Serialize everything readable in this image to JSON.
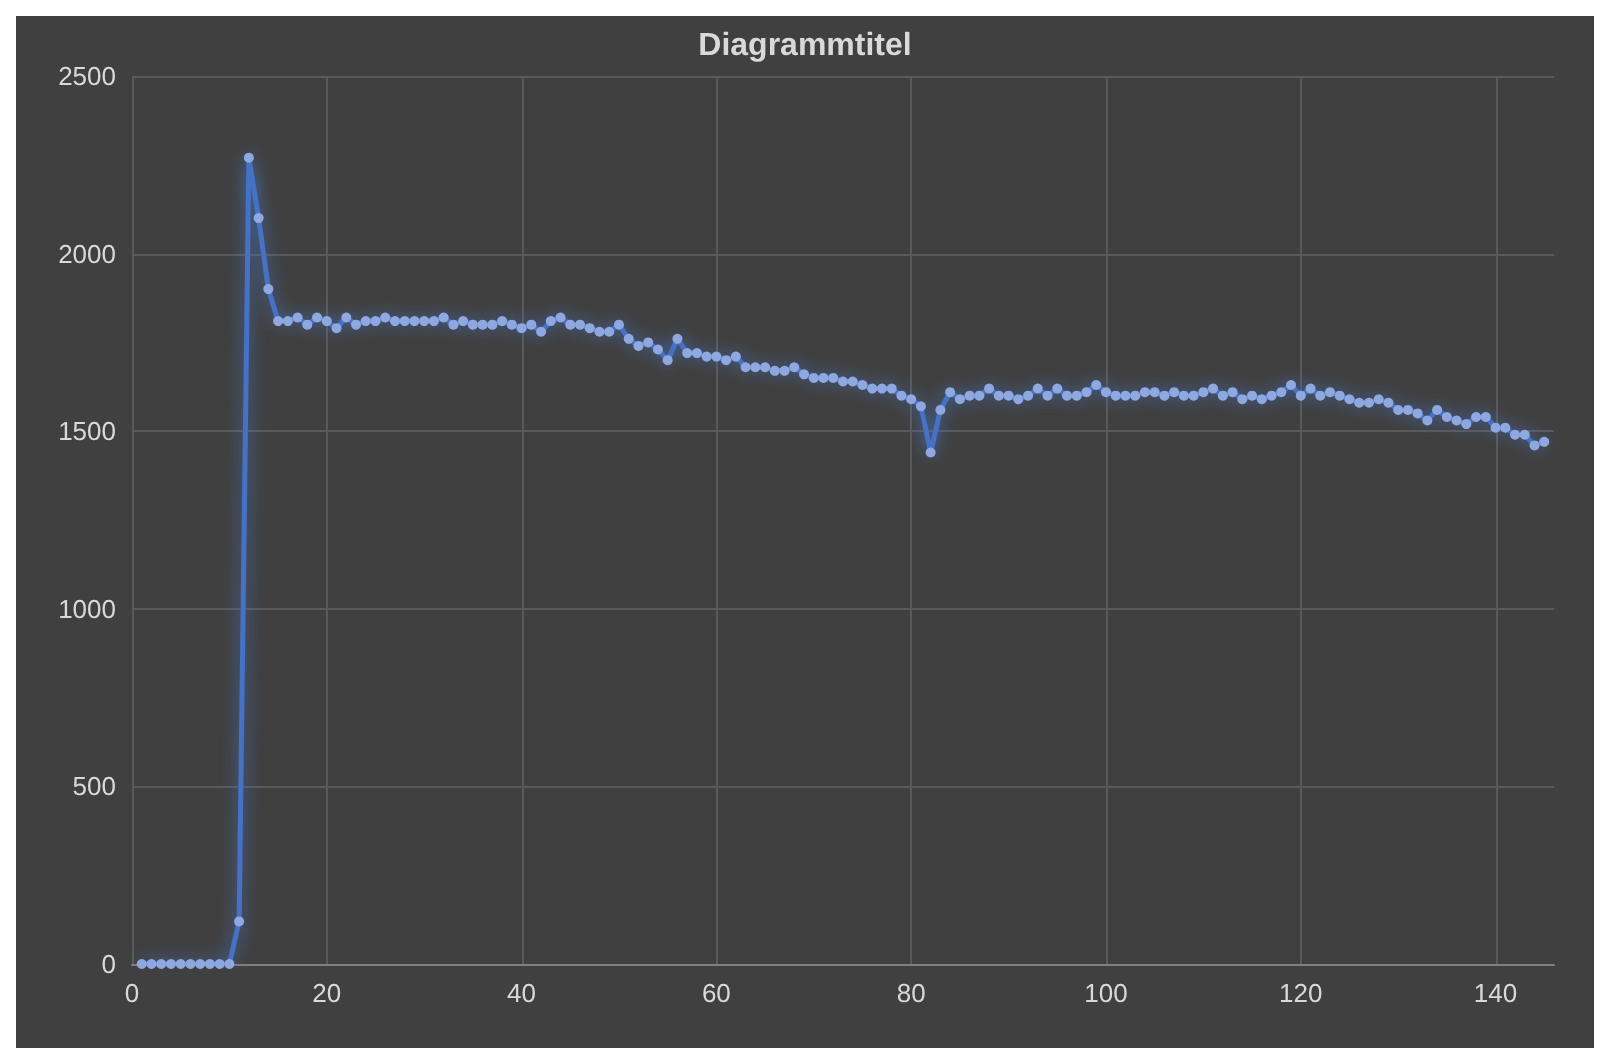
{
  "chart_data": {
    "type": "line",
    "title": "Diagrammtitel",
    "x": [
      1,
      2,
      3,
      4,
      5,
      6,
      7,
      8,
      9,
      10,
      11,
      12,
      13,
      14,
      15,
      16,
      17,
      18,
      19,
      20,
      21,
      22,
      23,
      24,
      25,
      26,
      27,
      28,
      29,
      30,
      31,
      32,
      33,
      34,
      35,
      36,
      37,
      38,
      39,
      40,
      41,
      42,
      43,
      44,
      45,
      46,
      47,
      48,
      49,
      50,
      51,
      52,
      53,
      54,
      55,
      56,
      57,
      58,
      59,
      60,
      61,
      62,
      63,
      64,
      65,
      66,
      67,
      68,
      69,
      70,
      71,
      72,
      73,
      74,
      75,
      76,
      77,
      78,
      79,
      80,
      81,
      82,
      83,
      84,
      85,
      86,
      87,
      88,
      89,
      90,
      91,
      92,
      93,
      94,
      95,
      96,
      97,
      98,
      99,
      100,
      101,
      102,
      103,
      104,
      105,
      106,
      107,
      108,
      109,
      110,
      111,
      112,
      113,
      114,
      115,
      116,
      117,
      118,
      119,
      120,
      121,
      122,
      123,
      124,
      125,
      126,
      127,
      128,
      129,
      130,
      131,
      132,
      133,
      134,
      135,
      136,
      137,
      138,
      139,
      140,
      141,
      142,
      143,
      144,
      145
    ],
    "series": [
      {
        "color": "#4472c4",
        "values": [
          0,
          0,
          0,
          0,
          0,
          0,
          0,
          0,
          0,
          0,
          120,
          2270,
          2100,
          1900,
          1810,
          1810,
          1820,
          1800,
          1820,
          1810,
          1790,
          1820,
          1800,
          1810,
          1810,
          1820,
          1810,
          1810,
          1810,
          1810,
          1810,
          1820,
          1800,
          1810,
          1800,
          1800,
          1800,
          1810,
          1800,
          1790,
          1800,
          1780,
          1810,
          1820,
          1800,
          1800,
          1790,
          1780,
          1780,
          1800,
          1760,
          1740,
          1750,
          1730,
          1700,
          1760,
          1720,
          1720,
          1710,
          1710,
          1700,
          1710,
          1680,
          1680,
          1680,
          1670,
          1670,
          1680,
          1660,
          1650,
          1650,
          1650,
          1640,
          1640,
          1630,
          1620,
          1620,
          1620,
          1600,
          1590,
          1570,
          1440,
          1560,
          1610,
          1590,
          1600,
          1600,
          1620,
          1600,
          1600,
          1590,
          1600,
          1620,
          1600,
          1620,
          1600,
          1600,
          1610,
          1630,
          1610,
          1600,
          1600,
          1600,
          1610,
          1610,
          1600,
          1610,
          1600,
          1600,
          1610,
          1620,
          1600,
          1610,
          1590,
          1600,
          1590,
          1600,
          1610,
          1630,
          1600,
          1620,
          1600,
          1610,
          1600,
          1590,
          1580,
          1580,
          1590,
          1580,
          1560,
          1560,
          1550,
          1530,
          1560,
          1540,
          1530,
          1520,
          1540,
          1540,
          1510,
          1510,
          1490,
          1490,
          1460,
          1470
        ]
      }
    ],
    "xlim": [
      0,
      146
    ],
    "xticks": [
      0,
      20,
      40,
      60,
      80,
      100,
      120,
      140
    ],
    "ylim": [
      0,
      2500
    ],
    "yticks": [
      0,
      500,
      1000,
      1500,
      2000,
      2500
    ],
    "grid": true,
    "marker": "circle",
    "line_style": "solid"
  }
}
